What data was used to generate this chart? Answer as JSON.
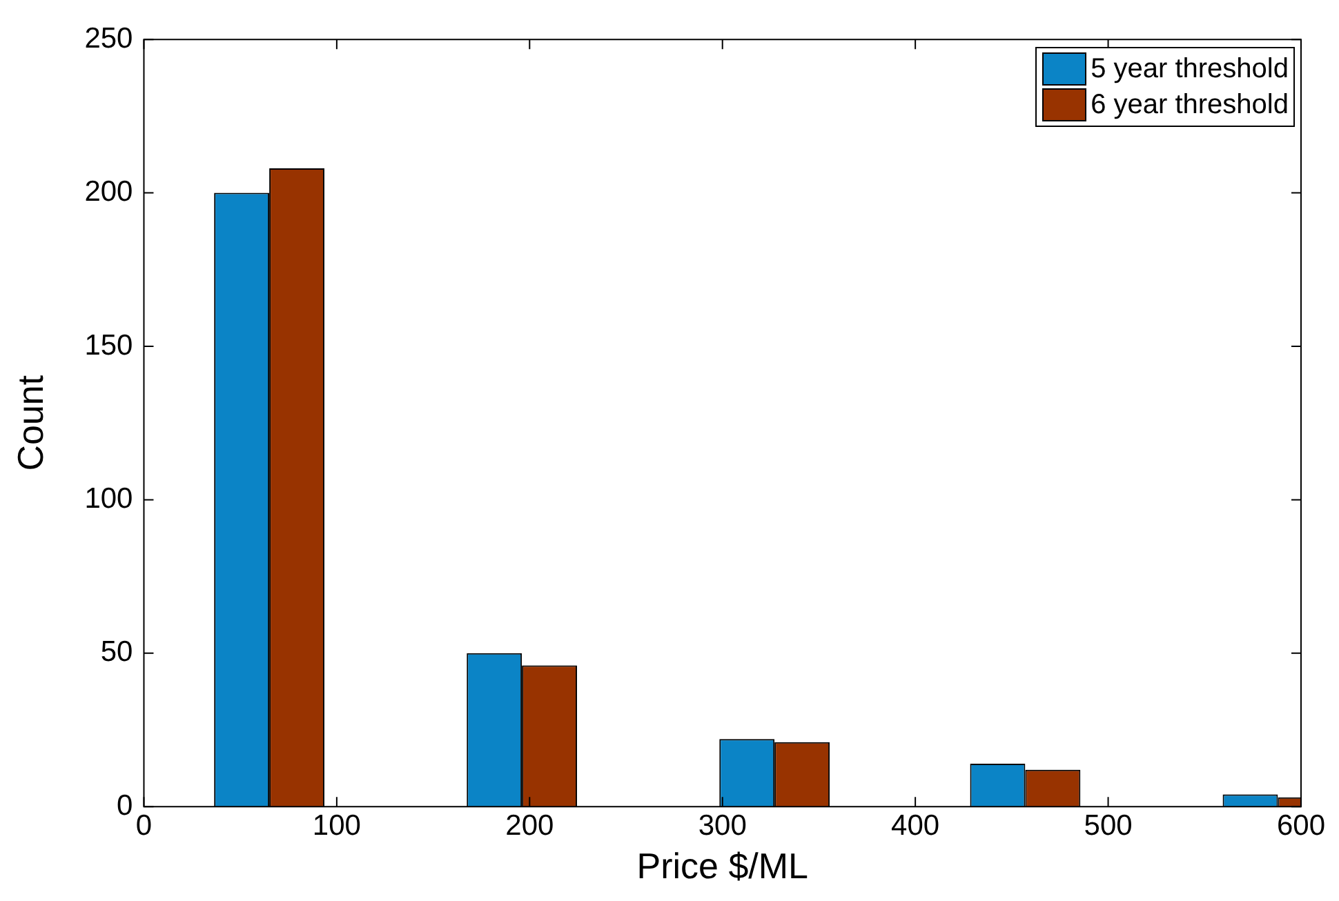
{
  "chart_data": {
    "type": "bar",
    "xlabel": "Price $/ML",
    "ylabel": "Count",
    "x": [
      65,
      196,
      327,
      457,
      588
    ],
    "series": [
      {
        "name": "5 year threshold",
        "color": "#0b84c6",
        "values": [
          200,
          50,
          22,
          14,
          4
        ]
      },
      {
        "name": "6 year threshold",
        "color": "#983300",
        "values": [
          208,
          46,
          21,
          12,
          3
        ]
      }
    ],
    "xlim": [
      0,
      600
    ],
    "xticks": [
      0,
      100,
      200,
      300,
      400,
      500,
      600
    ],
    "ylim": [
      0,
      250
    ],
    "yticks": [
      0,
      50,
      100,
      150,
      200,
      250
    ],
    "grid": false,
    "legend": "top right"
  }
}
